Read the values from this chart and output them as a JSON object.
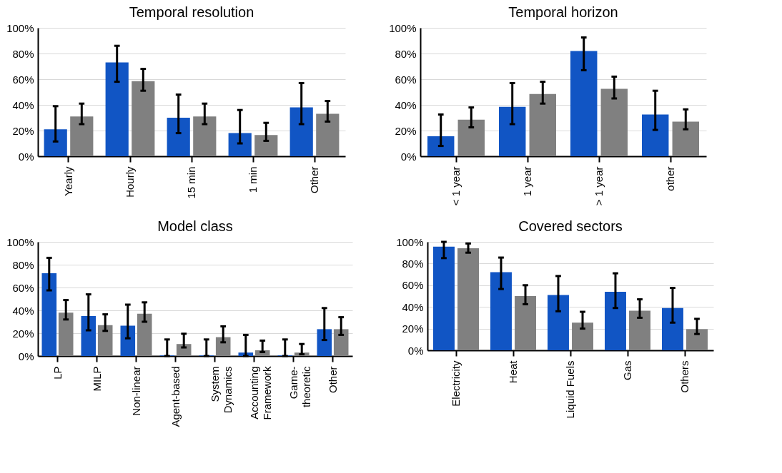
{
  "chart_data": [
    {
      "type": "bar",
      "title": "Temporal resolution",
      "categories": [
        "Yearly",
        "Hourly",
        "15 min",
        "1 min",
        "Other"
      ],
      "series": [
        {
          "color": "#1155c4",
          "values": [
            21,
            73,
            30,
            18,
            38
          ],
          "errors": [
            [
              11.5,
              39
            ],
            [
              58,
              86
            ],
            [
              18,
              48
            ],
            [
              10,
              36
            ],
            [
              25,
              57
            ]
          ]
        },
        {
          "color": "#808080",
          "values": [
            31,
            58.5,
            31,
            16.5,
            33
          ],
          "errors": [
            [
              25,
              41
            ],
            [
              51,
              68
            ],
            [
              25,
              41
            ],
            [
              12,
              26
            ],
            [
              27,
              43
            ]
          ]
        }
      ],
      "ylim": [
        0,
        100
      ],
      "yticks": [
        {
          "value": 0,
          "label": "0%"
        },
        {
          "value": 20,
          "label": "20%"
        },
        {
          "value": 40,
          "label": "40%"
        },
        {
          "value": 60,
          "label": "60%"
        },
        {
          "value": 80,
          "label": "80%"
        },
        {
          "value": 100,
          "label": "100%"
        }
      ],
      "grid": "y",
      "legend": false
    },
    {
      "type": "bar",
      "title": "Temporal horizon",
      "categories": [
        "< 1 year",
        "1 year",
        "> 1 year",
        "other"
      ],
      "series": [
        {
          "color": "#1155c4",
          "values": [
            15.5,
            38.5,
            82,
            32.5
          ],
          "errors": [
            [
              8,
              32.5
            ],
            [
              25,
              57
            ],
            [
              67,
              92.5
            ],
            [
              20.5,
              51
            ]
          ]
        },
        {
          "color": "#808080",
          "values": [
            28.5,
            48.5,
            52.5,
            27
          ],
          "errors": [
            [
              22.5,
              38
            ],
            [
              41,
              58
            ],
            [
              45,
              62
            ],
            [
              21,
              36.5
            ]
          ]
        }
      ],
      "ylim": [
        0,
        100
      ],
      "yticks": [
        {
          "value": 0,
          "label": "0%"
        },
        {
          "value": 20,
          "label": "20%"
        },
        {
          "value": 40,
          "label": "40%"
        },
        {
          "value": 60,
          "label": "60%"
        },
        {
          "value": 80,
          "label": "80%"
        },
        {
          "value": 100,
          "label": "100%"
        }
      ],
      "grid": "y",
      "legend": false
    },
    {
      "type": "bar",
      "title": "Model class",
      "categories": [
        "LP",
        "MILP",
        "Non-linear",
        "Agent-based",
        "System\nDynamics",
        "Accounting\nFramework",
        "Game-\ntheoretic",
        "Other"
      ],
      "series": [
        {
          "color": "#1155c4",
          "values": [
            72.5,
            35,
            26.5,
            0.5,
            0.5,
            3,
            0.5,
            23.5
          ],
          "errors": [
            [
              57.5,
              86
            ],
            [
              22.5,
              54
            ],
            [
              15.5,
              45
            ],
            [
              0,
              14.5
            ],
            [
              0,
              14.5
            ],
            [
              0,
              18.5
            ],
            [
              0,
              14.5
            ],
            [
              14,
              42
            ]
          ]
        },
        {
          "color": "#808080",
          "values": [
            38,
            27,
            37,
            10.5,
            16.5,
            5,
            3,
            23.5
          ],
          "errors": [
            [
              32,
              49
            ],
            [
              22,
              36.5
            ],
            [
              30,
              47
            ],
            [
              7.5,
              19.5
            ],
            [
              12,
              26
            ],
            [
              3.5,
              13.5
            ],
            [
              1.5,
              10.5
            ],
            [
              18.5,
              34
            ]
          ]
        }
      ],
      "ylim": [
        0,
        100
      ],
      "yticks": [
        {
          "value": 0,
          "label": "0%"
        },
        {
          "value": 20,
          "label": "20%"
        },
        {
          "value": 40,
          "label": "40%"
        },
        {
          "value": 60,
          "label": "60%"
        },
        {
          "value": 80,
          "label": "80%"
        },
        {
          "value": 100,
          "label": "100%"
        }
      ],
      "grid": "y",
      "legend": false
    },
    {
      "type": "bar",
      "title": "Covered sectors",
      "categories": [
        "Electricity",
        "Heat",
        "Liquid Fuels",
        "Gas",
        "Others"
      ],
      "series": [
        {
          "color": "#1155c4",
          "values": [
            95.5,
            72,
            51,
            54,
            39
          ],
          "errors": [
            [
              85,
              100
            ],
            [
              56.5,
              85.5
            ],
            [
              36,
              68.5
            ],
            [
              39,
              71
            ],
            [
              25.5,
              57.5
            ]
          ]
        },
        {
          "color": "#808080",
          "values": [
            94,
            50,
            25.5,
            36.5,
            19.5
          ],
          "errors": [
            [
              90,
              98.5
            ],
            [
              42.5,
              60
            ],
            [
              20,
              35.5
            ],
            [
              30,
              47
            ],
            [
              15,
              29
            ]
          ]
        }
      ],
      "ylim": [
        0,
        100
      ],
      "yticks": [
        {
          "value": 0,
          "label": "0%"
        },
        {
          "value": 20,
          "label": "20%"
        },
        {
          "value": 40,
          "label": "40%"
        },
        {
          "value": 60,
          "label": "60%"
        },
        {
          "value": 80,
          "label": "80%"
        },
        {
          "value": 100,
          "label": "100%"
        }
      ],
      "grid": "y",
      "legend": false
    }
  ]
}
